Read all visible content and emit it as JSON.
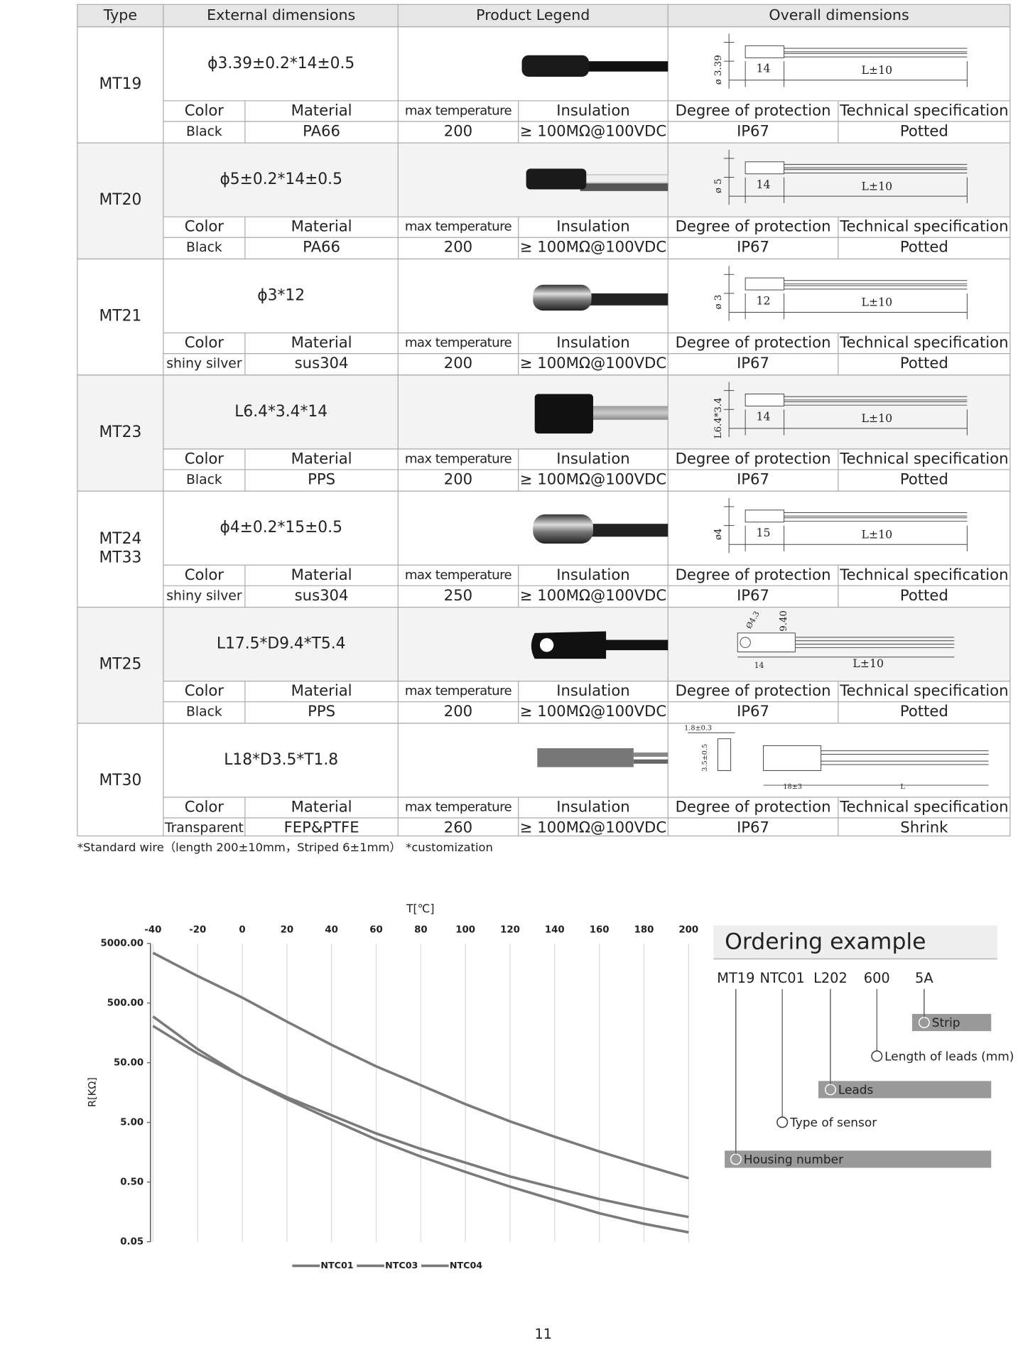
{
  "table": {
    "headers": [
      "Type",
      "External dimensions",
      "Product Legend",
      "Overall dimensions"
    ],
    "spec_headers": [
      "Color",
      "Material",
      "max temperature",
      "Insulation",
      "Degree of protection",
      "Technical specification"
    ],
    "rows": [
      {
        "type": [
          "MT19"
        ],
        "dimensions": "ϕ3.39±0.2*14±0.5",
        "specs": [
          "Black",
          "PA66",
          200,
          "≥ 100MΩ@100VDC",
          "IP67",
          "Potted"
        ],
        "drawing": [
          "ø 3.39",
          "14",
          "L±10"
        ]
      },
      {
        "type": [
          "MT20"
        ],
        "dimensions": "ϕ5±0.2*14±0.5",
        "specs": [
          "Black",
          "PA66",
          200,
          "≥ 100MΩ@100VDC",
          "IP67",
          "Potted"
        ],
        "drawing": [
          "ø 5",
          "14",
          "L±10"
        ]
      },
      {
        "type": [
          "MT21"
        ],
        "dimensions": "ϕ3*12",
        "specs": [
          "shiny silver",
          "sus304",
          200,
          "≥ 100MΩ@100VDC",
          "IP67",
          "Potted"
        ],
        "drawing": [
          "ø 3",
          "12",
          "L±10"
        ]
      },
      {
        "type": [
          "MT23"
        ],
        "dimensions": "L6.4*3.4*14",
        "specs": [
          "Black",
          "PPS",
          200,
          "≥ 100MΩ@100VDC",
          "IP67",
          "Potted"
        ],
        "drawing": [
          "L6.4*3.4",
          "14",
          "L±10"
        ]
      },
      {
        "type": [
          "MT24",
          "MT33"
        ],
        "dimensions": "ϕ4±0.2*15±0.5",
        "specs": [
          "shiny silver",
          "sus304",
          250,
          "≥ 100MΩ@100VDC",
          "IP67",
          "Potted"
        ],
        "drawing": [
          "ø4",
          "15",
          "L±10"
        ]
      },
      {
        "type": [
          "MT25"
        ],
        "dimensions": "L17.5*D9.4*T5.4",
        "specs": [
          "Black",
          "PPS",
          200,
          "≥ 100MΩ@100VDC",
          "IP67",
          "Potted"
        ],
        "drawing": [
          "Ø4.3",
          "9.40",
          "14",
          "L±10"
        ]
      },
      {
        "type": [
          "MT30"
        ],
        "dimensions": "L18*D3.5*T1.8",
        "specs": [
          "Transparent",
          "FEP&PTFE",
          260,
          "≥ 100MΩ@100VDC",
          "IP67",
          "Shrink"
        ],
        "drawing": [
          "1.8±0.3",
          "3.5±0.5",
          "18±3",
          "L"
        ]
      }
    ]
  },
  "footnotes": [
    "*Standard wire（length 200±10mm，Striped 6±1mm）",
    "*customization"
  ],
  "chart_data": {
    "type": "line",
    "x_label": "T[℃]",
    "y_label": "R[KΩ]",
    "x": [
      -40,
      -20,
      0,
      20,
      40,
      60,
      80,
      100,
      120,
      140,
      160,
      180,
      200
    ],
    "xlim": [
      -40,
      200
    ],
    "xticks": [
      -40,
      -20,
      0,
      20,
      40,
      60,
      80,
      100,
      120,
      140,
      160,
      180,
      200
    ],
    "ylim": [
      0.05,
      5000
    ],
    "y_scale": "log",
    "yticks": [
      {
        "value": 5000,
        "label": "5000.00"
      },
      {
        "value": 500,
        "label": "500.00"
      },
      {
        "value": 50,
        "label": "50.00"
      },
      {
        "value": 5,
        "label": "5.00"
      },
      {
        "value": 0.5,
        "label": "0.50"
      },
      {
        "value": 0.05,
        "label": "0.05"
      }
    ],
    "grid": "x",
    "legend": "bottom",
    "series": [
      {
        "name": "NTC01",
        "color": "#7a7a7a",
        "values": [
          3475,
          1416,
          618,
          244,
          99.8,
          43.5,
          21.0,
          10.1,
          5.2,
          2.87,
          1.63,
          0.96,
          0.58
        ]
      },
      {
        "name": "NTC03",
        "color": "#7a7a7a",
        "values": [
          207,
          71.6,
          29.2,
          13.2,
          6.56,
          3.27,
          1.8,
          1.06,
          0.62,
          0.4,
          0.26,
          0.18,
          0.13
        ]
      },
      {
        "name": "NTC04",
        "color": "#7a7a7a",
        "values": [
          298,
          84.5,
          29.2,
          12.3,
          5.56,
          2.59,
          1.34,
          0.74,
          0.42,
          0.25,
          0.15,
          0.1,
          0.072
        ]
      }
    ]
  },
  "ordering": {
    "title": "Ordering example",
    "codes": [
      "MT19",
      "NTC01",
      "L202",
      "600",
      "5A"
    ],
    "labels": [
      "Strip",
      "Length of leads (mm)",
      "Leads",
      "Type of sensor",
      "Housing number"
    ]
  },
  "page_number": "11"
}
